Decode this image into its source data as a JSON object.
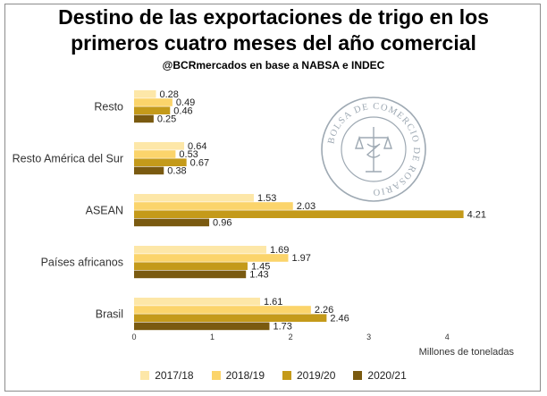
{
  "title_line1": "Destino de las exportaciones de trigo en los",
  "title_line2": "primeros cuatro meses del año comercial",
  "subtitle": "@BCRmercados en base a NABSA e INDEC",
  "watermark_text": "BOLSA DE COMERCIO DE ROSARIO",
  "chart_data": {
    "type": "bar",
    "orientation": "horizontal",
    "categories": [
      "Resto",
      "Resto América del Sur",
      "ASEAN",
      "Países africanos",
      "Brasil"
    ],
    "series": [
      {
        "name": "2017/18",
        "color": "#fde7a8",
        "values": [
          0.28,
          0.64,
          1.53,
          1.69,
          1.61
        ]
      },
      {
        "name": "2018/19",
        "color": "#fbd46b",
        "values": [
          0.49,
          0.53,
          2.03,
          1.97,
          2.26
        ]
      },
      {
        "name": "2019/20",
        "color": "#c49a1a",
        "values": [
          0.46,
          0.67,
          4.21,
          1.45,
          2.46
        ]
      },
      {
        "name": "2020/21",
        "color": "#7a5a10",
        "values": [
          0.25,
          0.38,
          0.96,
          1.43,
          1.73
        ]
      }
    ],
    "xlabel": "Millones de toneladas",
    "xlim": [
      0,
      4.5
    ],
    "xticks": [
      0,
      1,
      2,
      3,
      4
    ],
    "grid": false,
    "legend_position": "bottom"
  }
}
